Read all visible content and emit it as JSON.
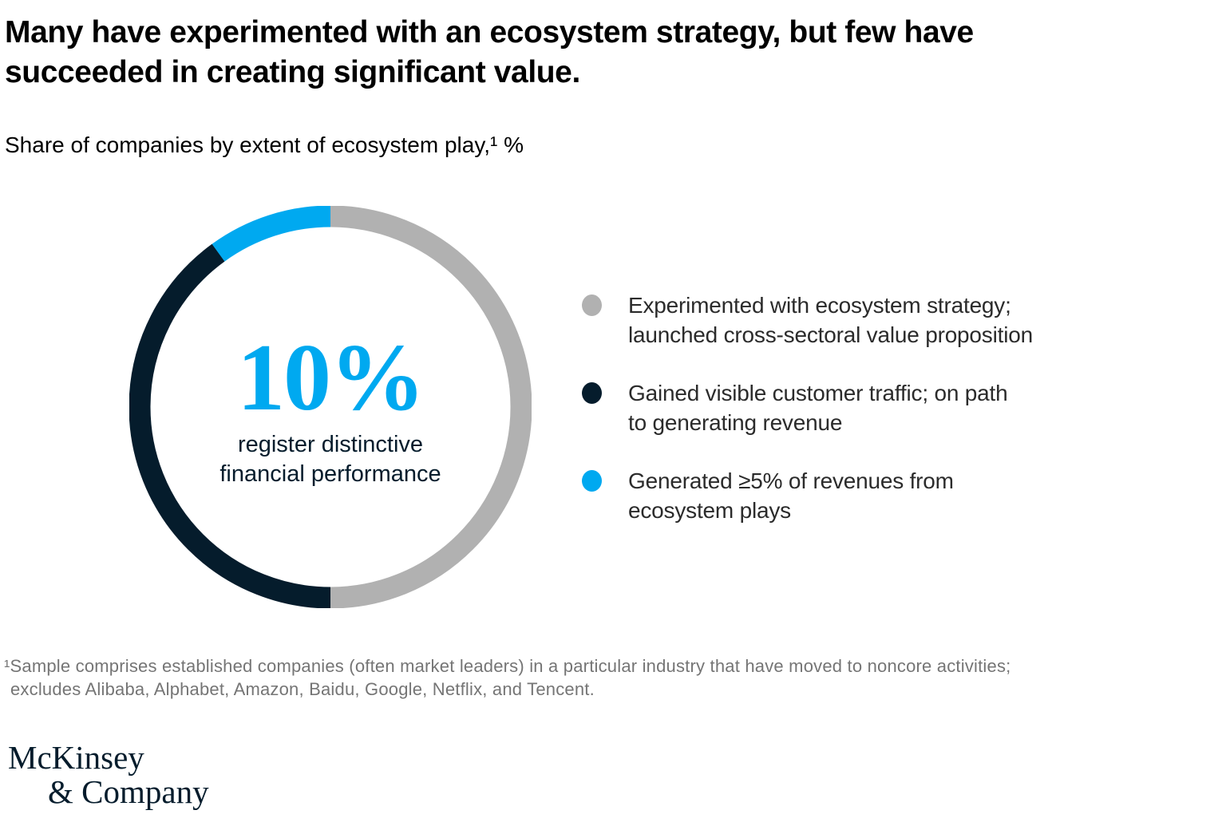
{
  "header": {
    "title_lines": [
      "Many have experimented with an ecosystem strategy, but few have",
      "succeeded in creating significant value."
    ],
    "subtitle": "Share of companies by extent of ecosystem play,¹ %"
  },
  "chart_data": {
    "type": "pie",
    "subtype": "donut",
    "title": "Share of companies by extent of ecosystem play, %",
    "units": "%",
    "start_angle_deg": -90,
    "direction": "clockwise",
    "segments": [
      {
        "label": "Experimented with ecosystem strategy; launched cross-sectoral value proposition",
        "value": 50,
        "color": "#B1B1B1"
      },
      {
        "label": "Gained visible customer traffic; on path to generating revenue",
        "value": 40,
        "color": "#051C2C"
      },
      {
        "label": "Generated ≥5% of revenues from ecosystem plays",
        "value": 10,
        "color": "#00A9F0"
      }
    ],
    "center_annotation": "10% register distinctive financial performance"
  },
  "donut": {
    "center_value": "10%",
    "center_label_lines": [
      "register distinctive",
      "financial performance"
    ]
  },
  "legend": {
    "items": [
      {
        "color": "#B1B1B1",
        "lines": [
          "Experimented with ecosystem strategy;",
          "launched cross-sectoral value proposition"
        ]
      },
      {
        "color": "#051C2C",
        "lines": [
          "Gained visible customer traffic; on path",
          "to generating revenue"
        ]
      },
      {
        "color": "#00A9F0",
        "lines": [
          "Generated ≥5% of revenues from",
          "ecosystem plays"
        ]
      }
    ]
  },
  "footnote": {
    "lines": [
      "¹Sample comprises established companies (often market leaders) in a particular industry that have moved to noncore activities;",
      "excludes Alibaba, Alphabet, Amazon, Baidu, Google, Netflix, and Tencent."
    ]
  },
  "logo": {
    "line1": "McKinsey",
    "line2": "& Company"
  },
  "colors": {
    "accent_blue": "#00A9F0",
    "deep_navy": "#051C2C",
    "segment_gray": "#B1B1B1",
    "legend_text": "#2b2b2b",
    "footnote_gray": "#757575"
  }
}
